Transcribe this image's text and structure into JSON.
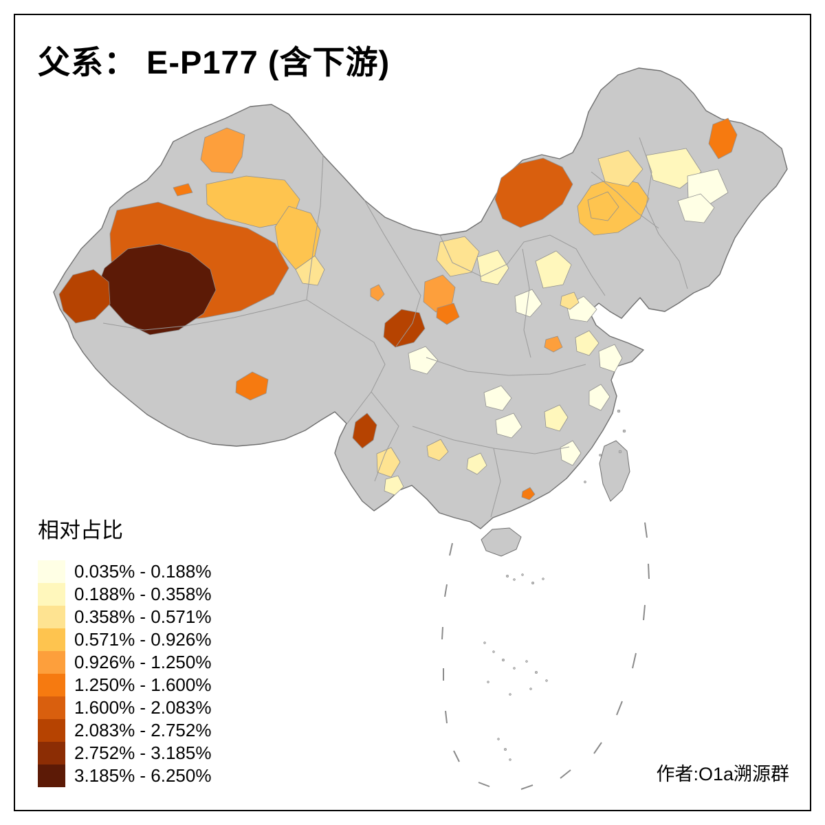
{
  "title": "父系： E-P177 (含下游)",
  "attribution": "作者:O1a溯源群",
  "legend": {
    "title": "相对占比",
    "items": [
      {
        "label": "0.035% - 0.188%",
        "color": "#FFFFE5"
      },
      {
        "label": "0.188% - 0.358%",
        "color": "#FFF7BC"
      },
      {
        "label": "0.358% - 0.571%",
        "color": "#FEE391"
      },
      {
        "label": "0.571% - 0.926%",
        "color": "#FEC44F"
      },
      {
        "label": "0.926% - 1.250%",
        "color": "#FD9F3C"
      },
      {
        "label": "1.250% - 1.600%",
        "color": "#F67A10"
      },
      {
        "label": "1.600% - 2.083%",
        "color": "#D95F0E"
      },
      {
        "label": "2.083% - 2.752%",
        "color": "#B64301"
      },
      {
        "label": "2.752% - 3.185%",
        "color": "#8C2D04"
      },
      {
        "label": "3.185% - 6.250%",
        "color": "#5C1A06"
      }
    ]
  },
  "map": {
    "base_fill": "#C9C9C9",
    "island_fill": "#C9C9C9",
    "regions": {
      "altay_north": 5,
      "tacheng_sliver": 6,
      "north_xinjiang_band": 4,
      "east_xinjiang": 4,
      "hami_south": 3,
      "central_xinjiang_dark": 7,
      "sw_xinjiang_darkest": 10,
      "west_xinjiang_darkred": 8,
      "inner_mongolia_dark": 7,
      "hetao_light": 4,
      "nm_patch_a": 3,
      "nm_patch_b": 4,
      "nm_pale_a": 2,
      "nm_pale_b": 1,
      "heilongjiang_orange": 6,
      "jilin_pale": 1,
      "lanzhou_cluster": 5,
      "lanzhou_dark_dot": 6,
      "gannan_dark": 8,
      "longdong_patch": 3,
      "shaanbei_pale": 2,
      "hebei_pale": 2,
      "jinzhong_pale": 1,
      "henan_pale": 1,
      "jinnan_orange": 5,
      "beijing_patch": 3,
      "qinghai_dot": 5,
      "tibet_orange": 6,
      "yunnan_dark": 8,
      "yunnan_pale_a": 3,
      "yunnan_pale_b": 2,
      "guizhou_patch": 3,
      "guangxi_patch": 2,
      "hanzhong_pale": 1,
      "hubei_pale": 1,
      "hunan_pale": 1,
      "jiangxi_pale": 2,
      "anhui_pale": 2,
      "jiangsu_pale": 1,
      "zhejiang_pale": 1,
      "fujian_pale": 1,
      "shenzhen_orange": 6
    }
  }
}
